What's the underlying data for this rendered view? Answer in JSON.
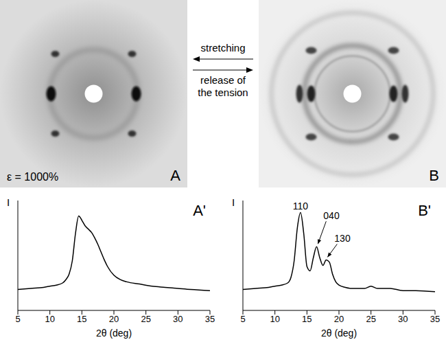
{
  "images": [
    {
      "label": "A",
      "annotation": "ε = 1000%"
    },
    {
      "label": "B"
    }
  ],
  "arrows": [
    {
      "text": "stretching",
      "direction": "left"
    },
    {
      "text": "release of the tension",
      "direction": "right"
    }
  ],
  "chart_data": [
    {
      "type": "line",
      "title": "A'",
      "x_label": "2θ (deg)",
      "y_label": "I",
      "color": "#000000",
      "x": [
        5,
        7,
        9,
        10,
        11,
        12,
        12.5,
        13,
        13.5,
        14,
        14.5,
        15,
        15.5,
        16,
        16.5,
        17,
        17.5,
        18,
        18.5,
        19,
        20,
        21,
        22,
        24,
        26,
        28,
        30,
        32,
        35
      ],
      "values": [
        19,
        20,
        21,
        22,
        23,
        25,
        28,
        33,
        45,
        70,
        86,
        82,
        77,
        74,
        71,
        66,
        60,
        53,
        46,
        40,
        32,
        28,
        26,
        24,
        22,
        21,
        20,
        19,
        18
      ],
      "xlim": [
        5,
        35
      ],
      "xticks": [
        5,
        10,
        15,
        20,
        25,
        30,
        35
      ],
      "ylim": [
        0,
        100
      ],
      "tick_labels": "x"
    },
    {
      "type": "line",
      "title": "B'",
      "x_label": "2θ (deg)",
      "y_label": "I",
      "color": "#000000",
      "x": [
        5,
        7,
        9,
        10,
        11,
        12,
        12.5,
        13,
        13.5,
        14,
        14.5,
        15,
        15.5,
        16,
        16.5,
        17,
        17.5,
        18,
        18.5,
        19,
        19.5,
        20,
        21,
        22,
        24,
        25,
        26,
        27,
        28,
        30,
        32,
        35
      ],
      "values": [
        19,
        20,
        21,
        22,
        23,
        25,
        30,
        45,
        75,
        89,
        70,
        40,
        36,
        48,
        58,
        48,
        41,
        46,
        44,
        33,
        26,
        23,
        21,
        20,
        20,
        22,
        20,
        20,
        20,
        18,
        18,
        17
      ],
      "xlim": [
        5,
        35
      ],
      "xticks": [
        5,
        10,
        15,
        20,
        25,
        30,
        35
      ],
      "ylim": [
        0,
        100
      ],
      "tick_labels": "x",
      "annotations": [
        {
          "text": "110",
          "x": 14,
          "y": 89
        },
        {
          "text": "040",
          "x": 16.5,
          "y": 58
        },
        {
          "text": "130",
          "x": 18,
          "y": 46
        }
      ]
    }
  ]
}
